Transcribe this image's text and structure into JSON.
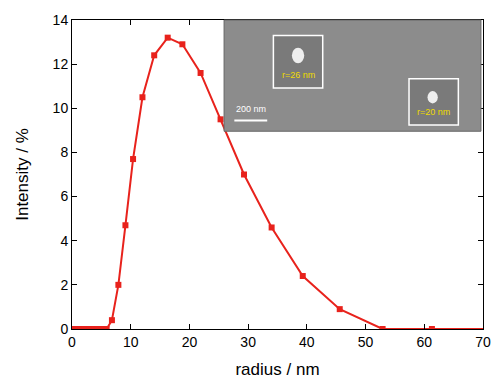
{
  "chart_data": {
    "type": "line",
    "x_label": "radius / nm",
    "y_label": "Intensity / %",
    "series": [
      {
        "name": "Intensity",
        "color": "#e8221c",
        "marker": "square",
        "x": [
          0.3,
          0.45,
          0.7,
          1.0,
          1.5,
          2.2,
          2.9,
          3.8,
          4.4,
          5.1,
          5.9,
          6.8,
          7.9,
          9.1,
          10.4,
          12.0,
          14.0,
          16.3,
          18.8,
          21.9,
          25.3,
          29.3,
          34.0,
          39.3,
          45.6,
          52.9,
          61.3,
          70.8
        ],
        "values": [
          0,
          0,
          0,
          0,
          0,
          0,
          0,
          0,
          0,
          0,
          0,
          0.4,
          2.0,
          4.7,
          7.7,
          10.5,
          12.4,
          13.2,
          12.9,
          11.6,
          9.5,
          7.0,
          4.6,
          2.4,
          0.9,
          0,
          0,
          0
        ]
      }
    ],
    "xlim": [
      0,
      70
    ],
    "xticks": [
      0,
      10,
      20,
      30,
      40,
      50,
      60,
      70
    ],
    "ylim": [
      0,
      14
    ],
    "yticks": [
      0,
      2,
      4,
      6,
      8,
      10,
      12,
      14
    ],
    "grid": false,
    "annotations": [
      "200 nm",
      "r=26 nm",
      "r=20 nm"
    ]
  }
}
